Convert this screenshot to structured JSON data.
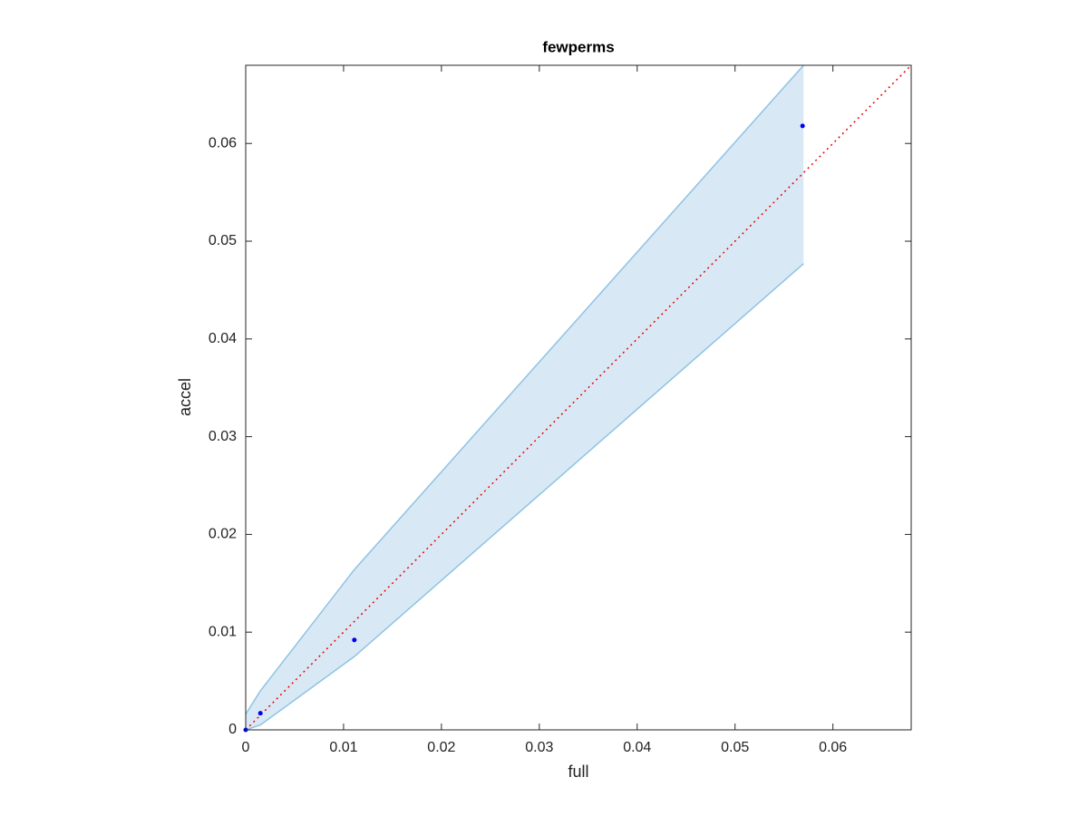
{
  "chart_data": {
    "type": "scatter",
    "title": "fewperms",
    "xlabel": "full",
    "ylabel": "accel",
    "xlim": [
      0,
      0.068
    ],
    "ylim": [
      0,
      0.068
    ],
    "xticks": [
      0,
      0.01,
      0.02,
      0.03,
      0.04,
      0.05,
      0.06
    ],
    "yticks": [
      0,
      0.01,
      0.02,
      0.03,
      0.04,
      0.05,
      0.06
    ],
    "x": [
      0,
      0.0015,
      0.0111,
      0.0569
    ],
    "values": [
      0,
      0.0017,
      0.0092,
      0.0618
    ],
    "color": "#0000ee",
    "band": {
      "x": [
        0,
        0.0015,
        0.0111,
        0.057
      ],
      "lower": [
        0,
        0.0005,
        0.0075,
        0.0477
      ],
      "upper": [
        0.0016,
        0.004,
        0.0164,
        0.068
      ],
      "fill": "#d9e8f5",
      "edge": "#8ec3e3"
    },
    "reference_line": {
      "x": [
        0,
        0.068
      ],
      "values": [
        0,
        0.068
      ],
      "color": "#ee0000"
    }
  }
}
